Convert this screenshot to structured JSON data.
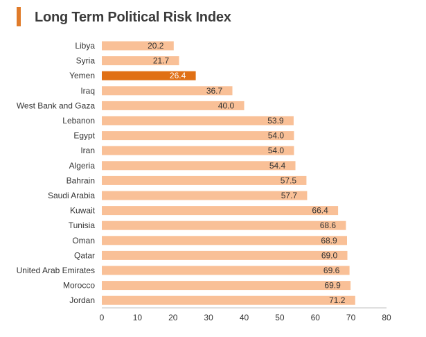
{
  "header": {
    "title": "Long Term Political Risk Index",
    "accent_color": "#e07b2a"
  },
  "chart_data": {
    "type": "bar",
    "orientation": "horizontal",
    "title": "Long Term Political Risk Index",
    "xlabel": "",
    "ylabel": "",
    "xlim": [
      0,
      80
    ],
    "ticks": [
      0,
      10,
      20,
      30,
      40,
      50,
      60,
      70,
      80
    ],
    "grid": false,
    "categories": [
      "Libya",
      "Syria",
      "Yemen",
      "Iraq",
      "West Bank and Gaza",
      "Lebanon",
      "Egypt",
      "Iran",
      "Algeria",
      "Bahrain",
      "Saudi Arabia",
      "Kuwait",
      "Tunisia",
      "Oman",
      "Qatar",
      "United Arab Emirates",
      "Morocco",
      "Jordan"
    ],
    "values": [
      20.2,
      21.7,
      26.4,
      36.7,
      40.0,
      53.9,
      54.0,
      54.0,
      54.4,
      57.5,
      57.7,
      66.4,
      68.6,
      68.9,
      69.0,
      69.6,
      69.9,
      71.2
    ],
    "value_labels": [
      "20.2",
      "21.7",
      "26.4",
      "36.7",
      "40.0",
      "53.9",
      "54.0",
      "54.0",
      "54.4",
      "57.5",
      "57.7",
      "66.4",
      "68.6",
      "68.9",
      "69.0",
      "69.6",
      "69.9",
      "71.2"
    ],
    "highlight_category": "Yemen",
    "bar_color": "#f9c097",
    "highlight_color": "#e07015",
    "label_color": "#333333",
    "highlight_label_color": "#ffffff"
  }
}
